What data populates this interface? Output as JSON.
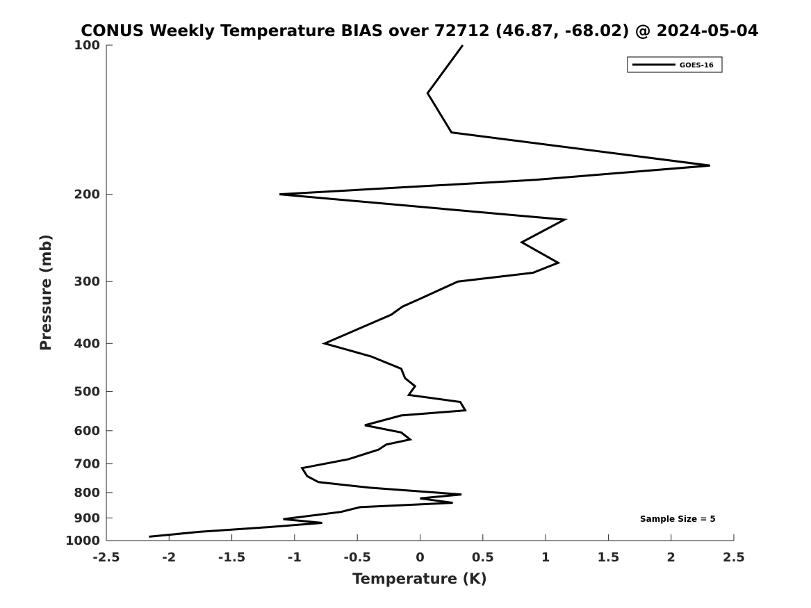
{
  "chart_data": {
    "type": "line",
    "title": "CONUS Weekly Temperature BIAS over 72712 (46.87, -68.02) @ 2024-05-04",
    "xlabel": "Temperature (K)",
    "ylabel": "Pressure (mb)",
    "xlim": [
      -2.5,
      2.5
    ],
    "ylim": [
      1000,
      100
    ],
    "yscale": "log",
    "y_reversed": true,
    "x_ticks": [
      -2.5,
      -2,
      -1.5,
      -1,
      -0.5,
      0,
      0.5,
      1,
      1.5,
      2,
      2.5
    ],
    "x_tick_labels": [
      "-2.5",
      "-2",
      "-1.5",
      "-1",
      "-0.5",
      "0",
      "0.5",
      "1",
      "1.5",
      "2",
      "2.5"
    ],
    "y_ticks": [
      100,
      200,
      300,
      400,
      500,
      600,
      700,
      800,
      900,
      1000
    ],
    "y_tick_labels": [
      "100",
      "200",
      "300",
      "400",
      "500",
      "600",
      "700",
      "800",
      "900",
      "1000"
    ],
    "grid": false,
    "legend_position": "top-right",
    "series": [
      {
        "name": "GOES-16",
        "color": "#000000",
        "points": [
          {
            "x": 0.34,
            "y": 100
          },
          {
            "x": 0.06,
            "y": 125
          },
          {
            "x": 0.25,
            "y": 150
          },
          {
            "x": 2.31,
            "y": 175
          },
          {
            "x": 0.92,
            "y": 187
          },
          {
            "x": -1.12,
            "y": 200
          },
          {
            "x": 1.15,
            "y": 225
          },
          {
            "x": 0.81,
            "y": 250
          },
          {
            "x": 1.1,
            "y": 275
          },
          {
            "x": 0.9,
            "y": 288
          },
          {
            "x": 0.3,
            "y": 300
          },
          {
            "x": 0.0,
            "y": 325
          },
          {
            "x": -0.14,
            "y": 337
          },
          {
            "x": -0.23,
            "y": 350
          },
          {
            "x": -0.76,
            "y": 400
          },
          {
            "x": -0.39,
            "y": 425
          },
          {
            "x": -0.15,
            "y": 450
          },
          {
            "x": -0.12,
            "y": 470
          },
          {
            "x": -0.04,
            "y": 488
          },
          {
            "x": -0.09,
            "y": 508
          },
          {
            "x": 0.32,
            "y": 525
          },
          {
            "x": 0.36,
            "y": 546
          },
          {
            "x": -0.15,
            "y": 559
          },
          {
            "x": -0.44,
            "y": 585
          },
          {
            "x": -0.15,
            "y": 605
          },
          {
            "x": -0.08,
            "y": 625
          },
          {
            "x": -0.27,
            "y": 640
          },
          {
            "x": -0.33,
            "y": 655
          },
          {
            "x": -0.57,
            "y": 685
          },
          {
            "x": -0.94,
            "y": 714
          },
          {
            "x": -0.9,
            "y": 741
          },
          {
            "x": -0.81,
            "y": 762
          },
          {
            "x": -0.4,
            "y": 782
          },
          {
            "x": 0.33,
            "y": 807
          },
          {
            "x": 0.0,
            "y": 822
          },
          {
            "x": 0.26,
            "y": 839
          },
          {
            "x": -0.48,
            "y": 856
          },
          {
            "x": -0.63,
            "y": 875
          },
          {
            "x": -1.09,
            "y": 905
          },
          {
            "x": -0.78,
            "y": 921
          },
          {
            "x": -1.2,
            "y": 939
          },
          {
            "x": -1.76,
            "y": 960
          },
          {
            "x": -2.16,
            "y": 982
          }
        ]
      }
    ],
    "annotations": [
      {
        "text": "Sample Size = 5",
        "position": "bottom-right"
      }
    ]
  }
}
